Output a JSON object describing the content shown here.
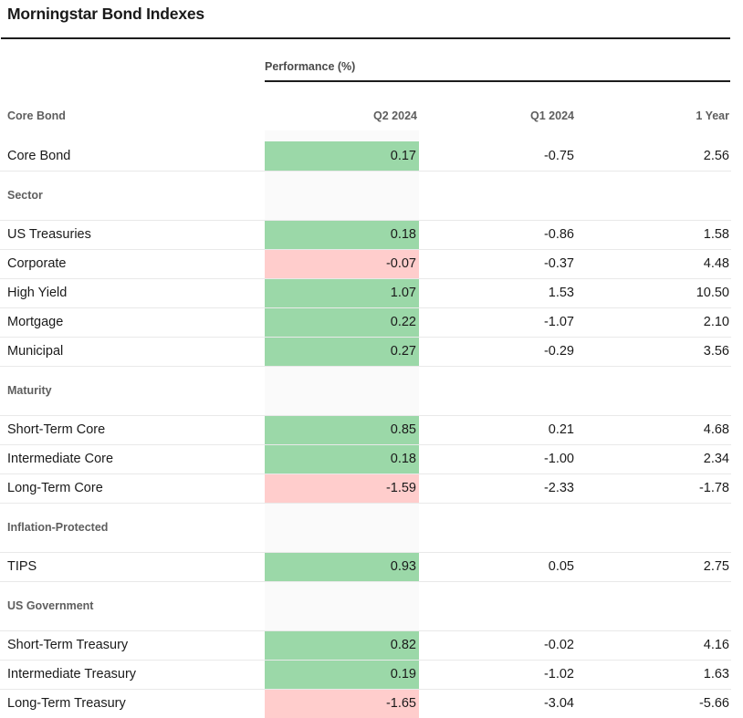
{
  "title": "Morningstar Bond Indexes",
  "colors": {
    "positive_highlight": "#9BD8A8",
    "negative_highlight": "#FFCDCC",
    "row_divider": "#e9e9e9",
    "column_band": "#fafafa"
  },
  "chart_data": {
    "type": "table",
    "title": "Morningstar Bond Indexes",
    "group_header": "Performance (%)",
    "columns": [
      "Q2 2024",
      "Q1 2024",
      "1 Year"
    ],
    "highlight_rule": "Q2 2024 cells shaded green when value is positive, pink when negative",
    "sections": [
      {
        "label": "Core Bond",
        "rows": [
          {
            "name": "Core Bond",
            "values": [
              0.17,
              -0.75,
              2.56
            ]
          }
        ]
      },
      {
        "label": "Sector",
        "rows": [
          {
            "name": "US Treasuries",
            "values": [
              0.18,
              -0.86,
              1.58
            ]
          },
          {
            "name": "Corporate",
            "values": [
              -0.07,
              -0.37,
              4.48
            ]
          },
          {
            "name": "High Yield",
            "values": [
              1.07,
              1.53,
              10.5
            ]
          },
          {
            "name": "Mortgage",
            "values": [
              0.22,
              -1.07,
              2.1
            ]
          },
          {
            "name": "Municipal",
            "values": [
              0.27,
              -0.29,
              3.56
            ]
          }
        ]
      },
      {
        "label": "Maturity",
        "rows": [
          {
            "name": "Short-Term Core",
            "values": [
              0.85,
              0.21,
              4.68
            ]
          },
          {
            "name": "Intermediate Core",
            "values": [
              0.18,
              -1.0,
              2.34
            ]
          },
          {
            "name": "Long-Term Core",
            "values": [
              -1.59,
              -2.33,
              -1.78
            ]
          }
        ]
      },
      {
        "label": "Inflation-Protected",
        "rows": [
          {
            "name": "TIPS",
            "values": [
              0.93,
              0.05,
              2.75
            ]
          }
        ]
      },
      {
        "label": "US Government",
        "rows": [
          {
            "name": "Short-Term Treasury",
            "values": [
              0.82,
              -0.02,
              4.16
            ]
          },
          {
            "name": "Intermediate Treasury",
            "values": [
              0.19,
              -1.02,
              1.63
            ]
          },
          {
            "name": "Long-Term Treasury",
            "values": [
              -1.65,
              -3.04,
              -5.66
            ]
          }
        ]
      }
    ]
  }
}
